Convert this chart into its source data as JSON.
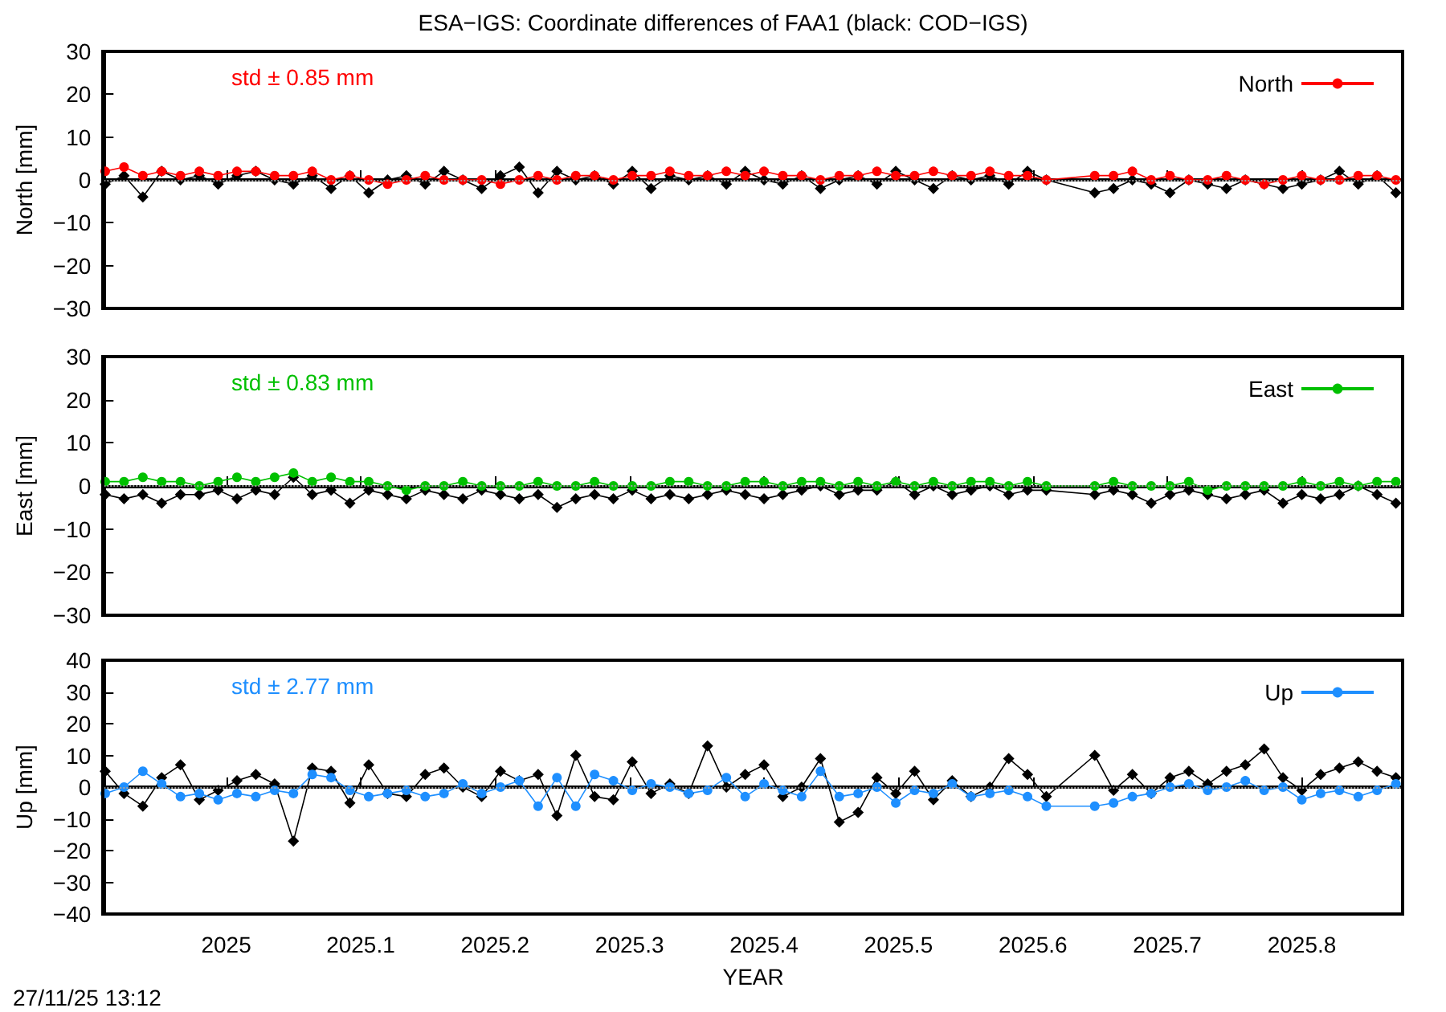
{
  "chart_data": [
    {
      "type": "line",
      "title": "ESA−IGS: Coordinate differences of FAA1 (black: COD−IGS)",
      "ylabel": "North [mm]",
      "annotations": [
        "std ± 0.85 mm"
      ],
      "xlim": [
        2024.909,
        2025.875
      ],
      "xticks": [
        2025,
        2025.1,
        2025.2,
        2025.3,
        2025.4,
        2025.5,
        2025.6,
        2025.7,
        2025.8
      ],
      "ylim": [
        -30,
        30
      ],
      "yticks": [
        -30,
        -20,
        -10,
        0,
        10,
        20,
        30
      ],
      "tick_labels": "y",
      "legend": "top right",
      "line_style": "solid",
      "grid": false,
      "ref_lines": [
        {
          "axis": "y",
          "value": 0,
          "color": "#a0a0a0",
          "line_style": "dotted"
        }
      ],
      "x": [
        2024.91,
        2024.924,
        2024.938,
        2024.952,
        2024.966,
        2024.98,
        2024.994,
        2025.008,
        2025.022,
        2025.036,
        2025.05,
        2025.064,
        2025.078,
        2025.092,
        2025.106,
        2025.12,
        2025.134,
        2025.148,
        2025.162,
        2025.176,
        2025.19,
        2025.204,
        2025.218,
        2025.232,
        2025.246,
        2025.26,
        2025.274,
        2025.288,
        2025.302,
        2025.316,
        2025.33,
        2025.344,
        2025.358,
        2025.372,
        2025.386,
        2025.4,
        2025.414,
        2025.428,
        2025.442,
        2025.456,
        2025.47,
        2025.484,
        2025.498,
        2025.512,
        2025.526,
        2025.54,
        2025.554,
        2025.568,
        2025.582,
        2025.596,
        2025.61,
        2025.646,
        2025.66,
        2025.674,
        2025.688,
        2025.702,
        2025.716,
        2025.73,
        2025.744,
        2025.758,
        2025.772,
        2025.786,
        2025.8,
        2025.814,
        2025.828,
        2025.842,
        2025.856,
        2025.87
      ],
      "series": [
        {
          "color": "#000000",
          "marker": "diamond",
          "values": [
            -1,
            1,
            -4,
            2,
            0,
            1,
            -1,
            1,
            2,
            0,
            -1,
            1,
            -2,
            1,
            -3,
            0,
            1,
            -1,
            2,
            0,
            -2,
            1,
            3,
            -3,
            2,
            0,
            1,
            -1,
            2,
            -2,
            1,
            0,
            1,
            -1,
            2,
            0,
            -1,
            1,
            -2,
            0,
            1,
            -1,
            2,
            0,
            -2,
            1,
            0,
            1,
            -1,
            2,
            0,
            -3,
            -2,
            0,
            -1,
            -3,
            0,
            -1,
            -2,
            0,
            -1,
            -2,
            -1,
            0,
            2,
            -1,
            1,
            -3
          ]
        },
        {
          "name": "North",
          "color": "#ff0000",
          "marker": "circle",
          "values": [
            2,
            3,
            1,
            2,
            1,
            2,
            1,
            2,
            2,
            1,
            1,
            2,
            0,
            1,
            0,
            -1,
            0,
            1,
            0,
            0,
            0,
            -1,
            0,
            1,
            0,
            1,
            1,
            0,
            1,
            1,
            2,
            1,
            1,
            2,
            1,
            2,
            1,
            1,
            0,
            1,
            1,
            2,
            1,
            1,
            2,
            1,
            1,
            2,
            1,
            1,
            0,
            1,
            1,
            2,
            0,
            1,
            0,
            0,
            1,
            0,
            -1,
            0,
            1,
            0,
            0,
            1,
            1,
            0
          ]
        }
      ]
    },
    {
      "type": "line",
      "ylabel": "East [mm]",
      "annotations": [
        "std ± 0.83 mm"
      ],
      "xlim": [
        2024.909,
        2025.875
      ],
      "xticks": [
        2025,
        2025.1,
        2025.2,
        2025.3,
        2025.4,
        2025.5,
        2025.6,
        2025.7,
        2025.8
      ],
      "ylim": [
        -30,
        30
      ],
      "yticks": [
        -30,
        -20,
        -10,
        0,
        10,
        20,
        30
      ],
      "tick_labels": "y",
      "legend": "top right",
      "line_style": "solid",
      "grid": false,
      "ref_lines": [
        {
          "axis": "y",
          "value": 0,
          "color": "#a0a0a0",
          "line_style": "dotted"
        }
      ],
      "x": [
        2024.91,
        2024.924,
        2024.938,
        2024.952,
        2024.966,
        2024.98,
        2024.994,
        2025.008,
        2025.022,
        2025.036,
        2025.05,
        2025.064,
        2025.078,
        2025.092,
        2025.106,
        2025.12,
        2025.134,
        2025.148,
        2025.162,
        2025.176,
        2025.19,
        2025.204,
        2025.218,
        2025.232,
        2025.246,
        2025.26,
        2025.274,
        2025.288,
        2025.302,
        2025.316,
        2025.33,
        2025.344,
        2025.358,
        2025.372,
        2025.386,
        2025.4,
        2025.414,
        2025.428,
        2025.442,
        2025.456,
        2025.47,
        2025.484,
        2025.498,
        2025.512,
        2025.526,
        2025.54,
        2025.554,
        2025.568,
        2025.582,
        2025.596,
        2025.61,
        2025.646,
        2025.66,
        2025.674,
        2025.688,
        2025.702,
        2025.716,
        2025.73,
        2025.744,
        2025.758,
        2025.772,
        2025.786,
        2025.8,
        2025.814,
        2025.828,
        2025.842,
        2025.856,
        2025.87
      ],
      "series": [
        {
          "color": "#000000",
          "marker": "diamond",
          "values": [
            -2,
            -3,
            -2,
            -4,
            -2,
            -2,
            -1,
            -3,
            -1,
            -2,
            2,
            -2,
            -1,
            -4,
            -1,
            -2,
            -3,
            -1,
            -2,
            -3,
            -1,
            -2,
            -3,
            -2,
            -5,
            -3,
            -2,
            -3,
            -1,
            -3,
            -2,
            -3,
            -2,
            -1,
            -2,
            -3,
            -2,
            -1,
            0,
            -2,
            -1,
            -1,
            1,
            -2,
            0,
            -2,
            -1,
            0,
            -2,
            -1,
            -1,
            -2,
            -1,
            -2,
            -4,
            -2,
            -1,
            -2,
            -3,
            -2,
            -1,
            -4,
            -2,
            -3,
            -2,
            0,
            -2,
            -4
          ]
        },
        {
          "name": "East",
          "color": "#00c000",
          "marker": "circle",
          "values": [
            1,
            1,
            2,
            1,
            1,
            0,
            1,
            2,
            1,
            2,
            3,
            1,
            2,
            1,
            1,
            0,
            -1,
            0,
            0,
            1,
            0,
            0,
            0,
            1,
            0,
            0,
            1,
            0,
            0,
            0,
            1,
            1,
            0,
            0,
            1,
            1,
            0,
            1,
            1,
            0,
            1,
            0,
            1,
            0,
            1,
            0,
            1,
            1,
            0,
            1,
            0,
            0,
            1,
            0,
            0,
            0,
            1,
            -1,
            0,
            0,
            0,
            0,
            1,
            0,
            1,
            0,
            1,
            1
          ]
        }
      ]
    },
    {
      "type": "line",
      "ylabel": "Up [mm]",
      "xlabel": "YEAR",
      "annotations": [
        "std ± 2.77 mm",
        "27/11/25 13:12"
      ],
      "xlim": [
        2024.909,
        2025.875
      ],
      "xticks": [
        2025,
        2025.1,
        2025.2,
        2025.3,
        2025.4,
        2025.5,
        2025.6,
        2025.7,
        2025.8
      ],
      "ylim": [
        -40,
        40
      ],
      "yticks": [
        -40,
        -30,
        -20,
        -10,
        0,
        10,
        20,
        30,
        40
      ],
      "legend": "top right",
      "line_style": "solid",
      "grid": false,
      "ref_lines": [
        {
          "axis": "y",
          "value": 0,
          "color": "#a0a0a0",
          "line_style": "dotted"
        }
      ],
      "x": [
        2024.91,
        2024.924,
        2024.938,
        2024.952,
        2024.966,
        2024.98,
        2024.994,
        2025.008,
        2025.022,
        2025.036,
        2025.05,
        2025.064,
        2025.078,
        2025.092,
        2025.106,
        2025.12,
        2025.134,
        2025.148,
        2025.162,
        2025.176,
        2025.19,
        2025.204,
        2025.218,
        2025.232,
        2025.246,
        2025.26,
        2025.274,
        2025.288,
        2025.302,
        2025.316,
        2025.33,
        2025.344,
        2025.358,
        2025.372,
        2025.386,
        2025.4,
        2025.414,
        2025.428,
        2025.442,
        2025.456,
        2025.47,
        2025.484,
        2025.498,
        2025.512,
        2025.526,
        2025.54,
        2025.554,
        2025.568,
        2025.582,
        2025.596,
        2025.61,
        2025.646,
        2025.66,
        2025.674,
        2025.688,
        2025.702,
        2025.716,
        2025.73,
        2025.744,
        2025.758,
        2025.772,
        2025.786,
        2025.8,
        2025.814,
        2025.828,
        2025.842,
        2025.856,
        2025.87
      ],
      "series": [
        {
          "color": "#000000",
          "marker": "diamond",
          "values": [
            5,
            -2,
            -6,
            3,
            7,
            -4,
            -1,
            2,
            4,
            1,
            -17,
            6,
            5,
            -5,
            7,
            -2,
            -3,
            4,
            6,
            0,
            -3,
            5,
            2,
            4,
            -9,
            10,
            -3,
            -4,
            8,
            -2,
            1,
            -2,
            13,
            0,
            4,
            7,
            -3,
            0,
            9,
            -11,
            -8,
            3,
            -2,
            5,
            -4,
            2,
            -3,
            0,
            9,
            4,
            -3,
            10,
            -1,
            4,
            -2,
            3,
            5,
            1,
            5,
            7,
            12,
            3,
            -1,
            4,
            6,
            8,
            5,
            3
          ]
        },
        {
          "name": "Up",
          "color": "#1e8fff",
          "marker": "circle",
          "values": [
            -2,
            0,
            5,
            1,
            -3,
            -2,
            -4,
            -2,
            -3,
            -1,
            -2,
            4,
            3,
            -1,
            -3,
            -2,
            -1,
            -3,
            -2,
            1,
            -2,
            0,
            2,
            -6,
            3,
            -6,
            4,
            2,
            -1,
            1,
            0,
            -2,
            -1,
            3,
            -3,
            1,
            -1,
            -3,
            5,
            -3,
            -2,
            0,
            -5,
            -1,
            -2,
            1,
            -3,
            -2,
            -1,
            -3,
            -6,
            -6,
            -5,
            -3,
            -2,
            0,
            1,
            -1,
            0,
            2,
            -1,
            0,
            -4,
            -2,
            -1,
            -3,
            -1,
            1
          ]
        }
      ]
    }
  ]
}
